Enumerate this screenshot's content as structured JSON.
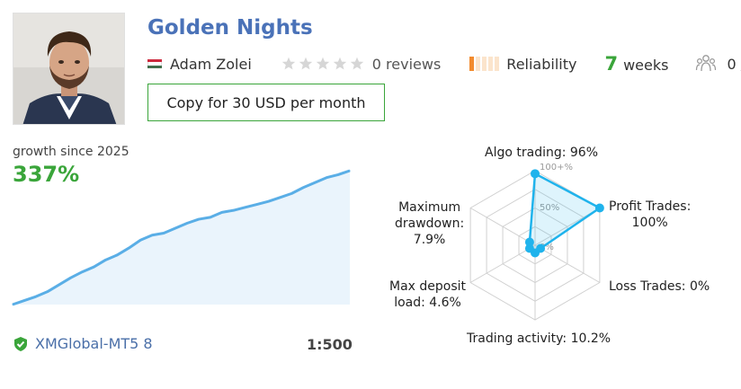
{
  "profile": {
    "title": "Golden Nights",
    "author": "Adam Zolei",
    "reviews": "0 reviews",
    "rating_stars": 0,
    "reliability": "Reliability",
    "weeks_num": "7",
    "weeks_label": "weeks",
    "subscribers": "0 /",
    "flag_colors": [
      "#cd2a3e",
      "#ffffff",
      "#436f4d"
    ],
    "copy_button": "Copy for 30 USD per month"
  },
  "growth": {
    "label": "growth since 2025",
    "value": "337%",
    "line_color": "#5aaee6",
    "fill_color": "#eaf4fc"
  },
  "account": {
    "broker": "XMGlobal-MT5 8",
    "leverage": "1:500"
  },
  "radar": {
    "algo": "Algo trading: 96%",
    "profit_trades": "Profit Trades:",
    "profit_trades_val": "100%",
    "loss_trades": "Loss Trades: 0%",
    "trading_activity": "Trading activity: 10.2%",
    "max_deposit_1": "Max deposit",
    "max_deposit_2": "load: 4.6%",
    "drawdown_1": "Maximum",
    "drawdown_2": "drawdown:",
    "drawdown_3": "7.9%",
    "tick_100": "100+%",
    "tick_50": "50%",
    "tick_0": "0%"
  },
  "chart_data": [
    {
      "type": "line",
      "title": "growth since 2025",
      "ylabel": "",
      "xlabel": "",
      "values": [
        0,
        4,
        8,
        13,
        20,
        27,
        33,
        38,
        45,
        50,
        57,
        65,
        70,
        72,
        77,
        82,
        86,
        88,
        93,
        95,
        98,
        101,
        104,
        108,
        112,
        118,
        123,
        128,
        131,
        135
      ]
    },
    {
      "type": "radar",
      "categories": [
        "Algo trading",
        "Profit Trades",
        "Loss Trades",
        "Trading activity",
        "Max deposit load",
        "Maximum drawdown"
      ],
      "values": [
        96,
        100,
        0,
        10.2,
        4.6,
        7.9
      ],
      "ylim": [
        0,
        100
      ],
      "color": "#1fb3ec"
    }
  ]
}
